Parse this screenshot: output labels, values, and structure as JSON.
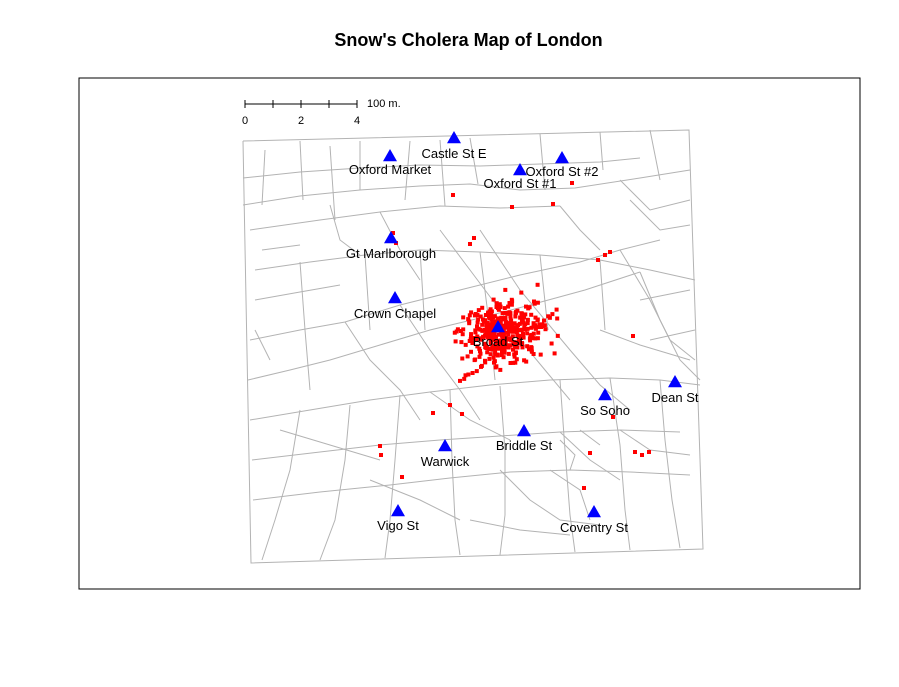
{
  "title": "Snow's Cholera Map of London",
  "colors": {
    "street": "#b3b3b3",
    "death": "#ff0000",
    "pump": "#0000ff",
    "frame": "#000000"
  },
  "scale_bar": {
    "label": "100 m.",
    "ticks": [
      "0",
      "2",
      "4"
    ]
  },
  "pumps": [
    {
      "name": "Castle St E"
    },
    {
      "name": "Oxford Market"
    },
    {
      "name": "Oxford St #1"
    },
    {
      "name": "Oxford St #2"
    },
    {
      "name": "Gt Marlborough"
    },
    {
      "name": "Crown Chapel"
    },
    {
      "name": "Broad St"
    },
    {
      "name": "Dean St"
    },
    {
      "name": "So Soho"
    },
    {
      "name": "Briddle St"
    },
    {
      "name": "Warwick"
    },
    {
      "name": "Vigo St"
    },
    {
      "name": "Coventry St"
    }
  ]
}
